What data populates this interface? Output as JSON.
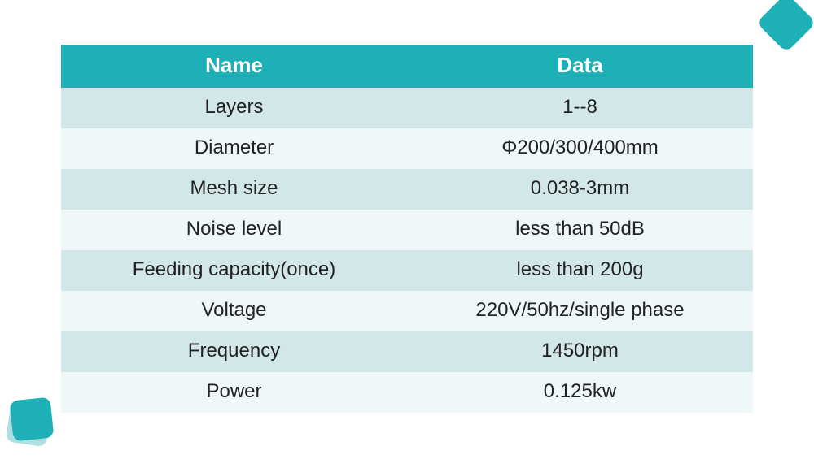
{
  "decor": {
    "color": "#1eb0b7",
    "color_light": "#6cc7cc"
  },
  "table": {
    "type": "table",
    "header_bg": "#1eb0b7",
    "header_text_color": "#ffffff",
    "row_bg_odd": "#d2e7e8",
    "row_bg_even": "#f0f7f8",
    "cell_text_color": "#222222",
    "header_fontsize": 26,
    "cell_fontsize": 24,
    "columns": [
      {
        "key": "name",
        "label": "Name"
      },
      {
        "key": "data",
        "label": "Data"
      }
    ],
    "rows": [
      {
        "name": "Layers",
        "data": "1--8"
      },
      {
        "name": "Diameter",
        "data": "Φ200/300/400mm"
      },
      {
        "name": "Mesh size",
        "data": "0.038-3mm"
      },
      {
        "name": "Noise level",
        "data": "less than 50dB"
      },
      {
        "name": "Feeding capacity(once)",
        "data": "less than 200g"
      },
      {
        "name": "Voltage",
        "data": "220V/50hz/single phase"
      },
      {
        "name": "Frequency",
        "data": "1450rpm"
      },
      {
        "name": "Power",
        "data": "0.125kw"
      }
    ]
  }
}
